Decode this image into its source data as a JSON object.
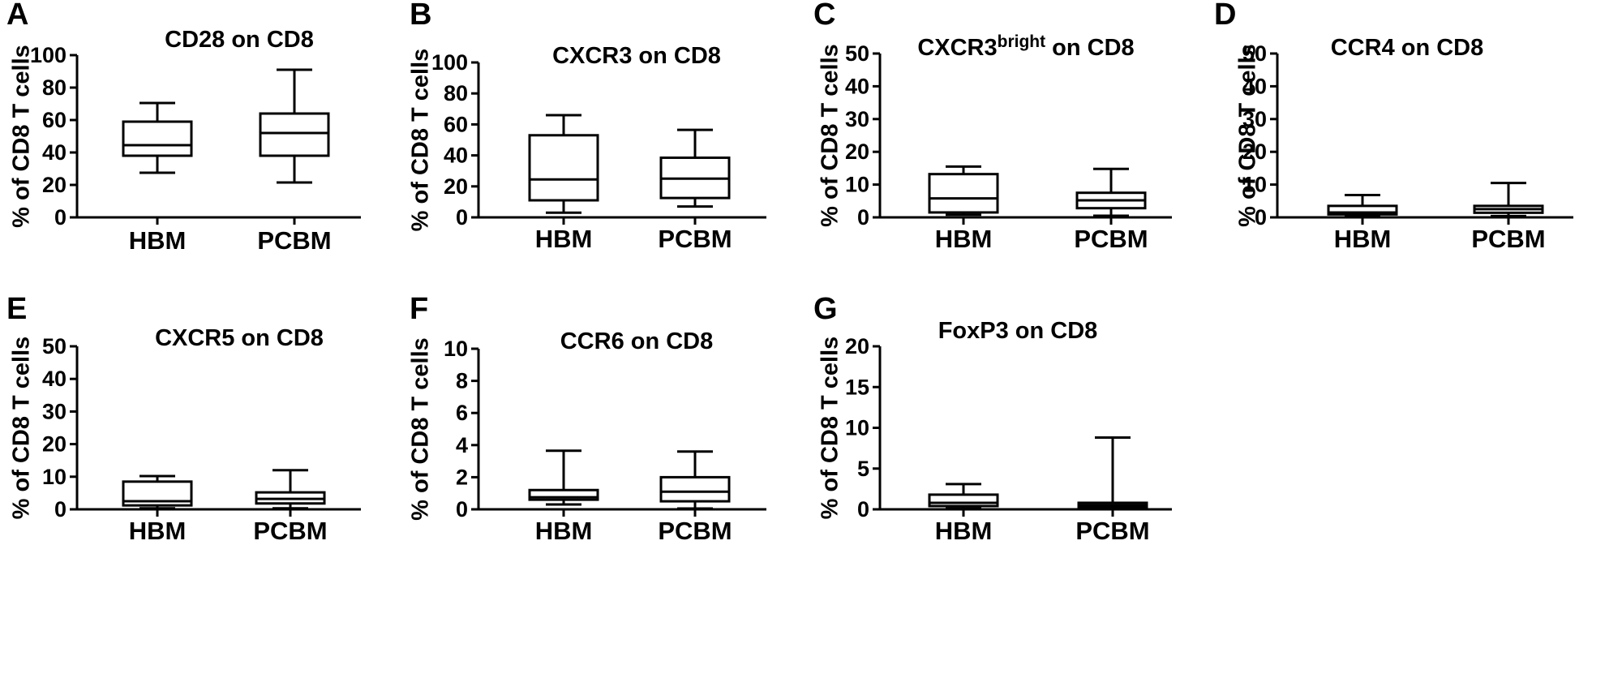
{
  "chart_data": [
    {
      "type": "box",
      "panel_letter": "A",
      "title_parts": [
        {
          "text": "CD28 on CD8",
          "sup": false
        }
      ],
      "ylabel": "% of CD8 T cells",
      "categories": [
        "HBM",
        "PCBM"
      ],
      "yticks": [
        "0",
        "20",
        "40",
        "60",
        "80",
        "100"
      ],
      "ylim": [
        0,
        100
      ],
      "boxes": [
        {
          "category": "HBM",
          "min": 27.5,
          "q1": 38,
          "median": 44.5,
          "q3": 59,
          "max": 70.5
        },
        {
          "category": "PCBM",
          "min": 21.5,
          "q1": 38,
          "median": 52,
          "q3": 64,
          "max": 91
        }
      ]
    },
    {
      "type": "box",
      "panel_letter": "B",
      "title_parts": [
        {
          "text": "CXCR3 on CD8",
          "sup": false
        }
      ],
      "ylabel": "% of CD8 T cells",
      "categories": [
        "HBM",
        "PCBM"
      ],
      "yticks": [
        "0",
        "20",
        "40",
        "60",
        "80",
        "100"
      ],
      "ylim": [
        0,
        100
      ],
      "boxes": [
        {
          "category": "HBM",
          "min": 3,
          "q1": 11,
          "median": 24.5,
          "q3": 53,
          "max": 66
        },
        {
          "category": "PCBM",
          "min": 7,
          "q1": 12.5,
          "median": 25,
          "q3": 38.5,
          "max": 56.5
        }
      ]
    },
    {
      "type": "box",
      "panel_letter": "C",
      "title_parts": [
        {
          "text": "CXCR3",
          "sup": false
        },
        {
          "text": "bright",
          "sup": true
        },
        {
          "text": " on CD8",
          "sup": false
        }
      ],
      "ylabel": "% of CD8 T cells",
      "categories": [
        "HBM",
        "PCBM"
      ],
      "yticks": [
        "0",
        "10",
        "20",
        "30",
        "40",
        "50"
      ],
      "ylim": [
        0,
        50
      ],
      "boxes": [
        {
          "category": "HBM",
          "min": 0.8,
          "q1": 1.5,
          "median": 5.8,
          "q3": 13.2,
          "max": 15.5
        },
        {
          "category": "PCBM",
          "min": 0.5,
          "q1": 2.8,
          "median": 5.2,
          "q3": 7.5,
          "max": 14.8
        }
      ]
    },
    {
      "type": "box",
      "panel_letter": "D",
      "title_parts": [
        {
          "text": "CCR4 on CD8",
          "sup": false
        }
      ],
      "ylabel": "% of CD8 T cells",
      "categories": [
        "HBM",
        "PCBM"
      ],
      "yticks": [
        "0",
        "10",
        "20",
        "30",
        "40",
        "50"
      ],
      "ylim": [
        0,
        50
      ],
      "boxes": [
        {
          "category": "HBM",
          "min": 0.3,
          "q1": 0.9,
          "median": 1.5,
          "q3": 3.5,
          "max": 6.8
        },
        {
          "category": "PCBM",
          "min": 0.4,
          "q1": 1.4,
          "median": 2.5,
          "q3": 3.5,
          "max": 10.5
        }
      ]
    },
    {
      "type": "box",
      "panel_letter": "E",
      "title_parts": [
        {
          "text": "CXCR5 on CD8",
          "sup": false
        }
      ],
      "ylabel": "% of CD8 T cells",
      "categories": [
        "HBM",
        "PCBM"
      ],
      "yticks": [
        "0",
        "10",
        "20",
        "30",
        "40",
        "50"
      ],
      "ylim": [
        0,
        50
      ],
      "boxes": [
        {
          "category": "HBM",
          "min": 0.3,
          "q1": 1.2,
          "median": 2.5,
          "q3": 8.5,
          "max": 10.2
        },
        {
          "category": "PCBM",
          "min": 0.3,
          "q1": 1.8,
          "median": 3.2,
          "q3": 5.2,
          "max": 12
        }
      ]
    },
    {
      "type": "box",
      "panel_letter": "F",
      "title_parts": [
        {
          "text": "CCR6 on CD8",
          "sup": false
        }
      ],
      "ylabel": "% of CD8 T cells",
      "categories": [
        "HBM",
        "PCBM"
      ],
      "yticks": [
        "0",
        "2",
        "4",
        "6",
        "8",
        "10"
      ],
      "ylim": [
        0,
        10
      ],
      "boxes": [
        {
          "category": "HBM",
          "min": 0.3,
          "q1": 0.6,
          "median": 0.75,
          "q3": 1.2,
          "max": 3.65
        },
        {
          "category": "PCBM",
          "min": 0.05,
          "q1": 0.5,
          "median": 1.1,
          "q3": 2.0,
          "max": 3.6
        }
      ]
    },
    {
      "type": "box",
      "panel_letter": "G",
      "title_parts": [
        {
          "text": "FoxP3 on CD8",
          "sup": false
        }
      ],
      "ylabel": "% of CD8 T cells",
      "categories": [
        "HBM",
        "PCBM"
      ],
      "yticks": [
        "0",
        "5",
        "10",
        "15",
        "20"
      ],
      "ylim": [
        0,
        20
      ],
      "boxes": [
        {
          "category": "HBM",
          "min": 0.1,
          "q1": 0.4,
          "median": 0.8,
          "q3": 1.8,
          "max": 3.1
        },
        {
          "category": "PCBM",
          "min": 0.05,
          "q1": 0.2,
          "median": 0.5,
          "q3": 0.8,
          "max": 8.8
        }
      ]
    }
  ]
}
